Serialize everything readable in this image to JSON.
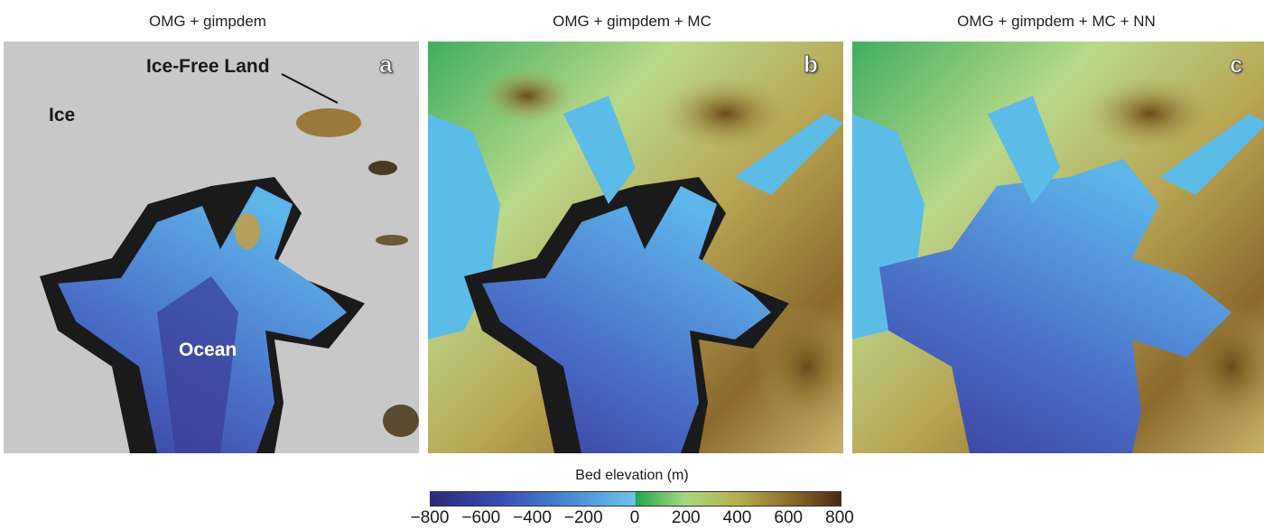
{
  "panels": [
    {
      "title": "OMG + gimpdem",
      "letter": "a"
    },
    {
      "title": "OMG + gimpdem + MC",
      "letter": "b"
    },
    {
      "title": "OMG + gimpdem + MC + NN",
      "letter": "c"
    }
  ],
  "annotations": {
    "ice_free_land": "Ice-Free Land",
    "ice": "Ice",
    "ocean": "Ocean"
  },
  "colorbar": {
    "title": "Bed elevation (m)",
    "ticks": [
      "−800",
      "−600",
      "−400",
      "−200",
      "0",
      "200",
      "400",
      "600",
      "800"
    ],
    "range": [
      -800,
      800
    ],
    "colors": [
      "#2a2a7a",
      "#3a4fb8",
      "#4a8ed6",
      "#6cc4ec",
      "#1ea84f",
      "#a8d880",
      "#b6b04a",
      "#8c6a2c",
      "#4a2a10"
    ]
  }
}
